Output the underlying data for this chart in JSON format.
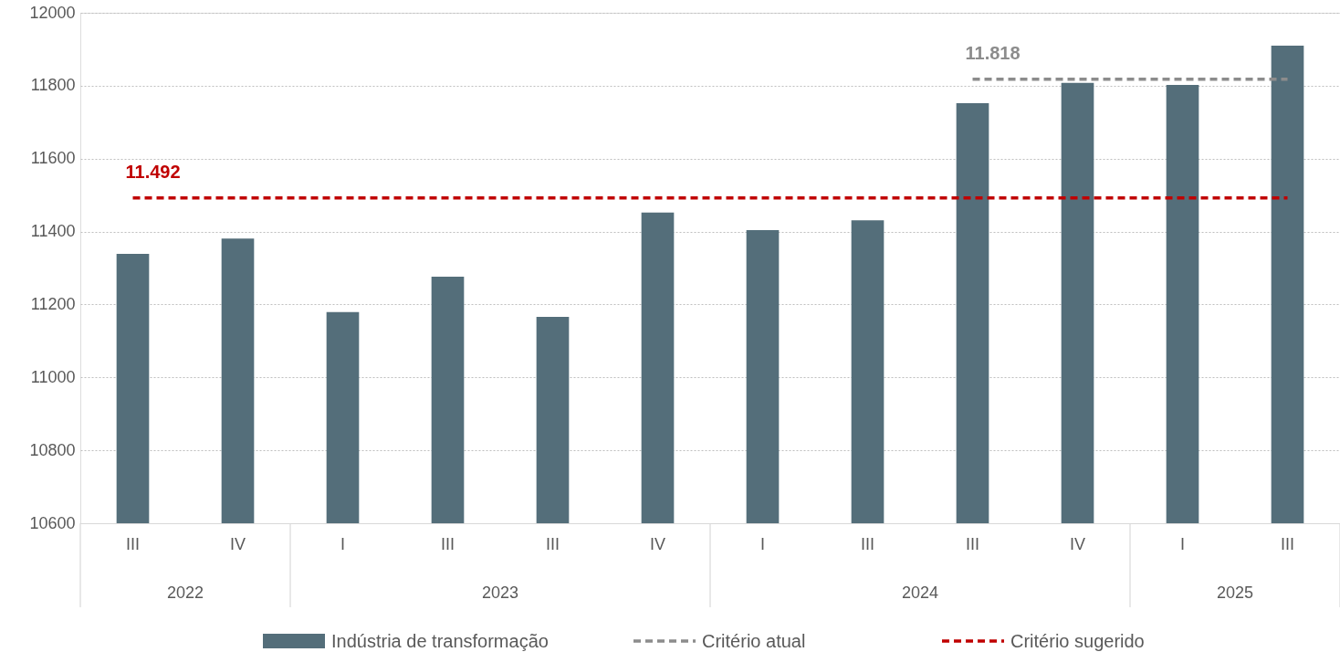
{
  "chart_data": {
    "type": "bar",
    "categories": [
      "III",
      "IV",
      "I",
      "III",
      "III",
      "IV",
      "I",
      "III",
      "III",
      "IV",
      "I",
      "III"
    ],
    "series": [
      {
        "name": "Indústria de transformação",
        "color": "#546e7a",
        "values": [
          11339,
          11381,
          11179,
          11276,
          11166,
          11452,
          11404,
          11431,
          11752,
          11808,
          11802,
          11910
        ]
      },
      {
        "name": "Critério atual",
        "type": "line",
        "line_style": "dashed",
        "color": "#8c8c8c",
        "values": [
          null,
          null,
          null,
          null,
          null,
          null,
          null,
          null,
          11818,
          11818,
          11818,
          11818
        ],
        "value_labels": [
          null,
          null,
          null,
          null,
          null,
          null,
          null,
          null,
          "11.818",
          null,
          null,
          null
        ]
      },
      {
        "name": "Critério sugerido",
        "type": "line",
        "line_style": "dashed",
        "color": "#c00000",
        "values": [
          11492,
          11492,
          11492,
          11492,
          11492,
          11492,
          11492,
          11492,
          11492,
          11492,
          11492,
          11492
        ],
        "value_labels": [
          "11.492",
          null,
          null,
          null,
          null,
          null,
          null,
          null,
          null,
          null,
          null,
          null
        ]
      }
    ],
    "annotations": [
      "2022",
      "2023",
      "2024",
      "2025"
    ],
    "ylim": [
      10600,
      12000
    ],
    "yticks": [
      10600,
      10800,
      11000,
      11200,
      11400,
      11600,
      11800,
      12000
    ],
    "grid": "y",
    "legend": "bottom"
  }
}
